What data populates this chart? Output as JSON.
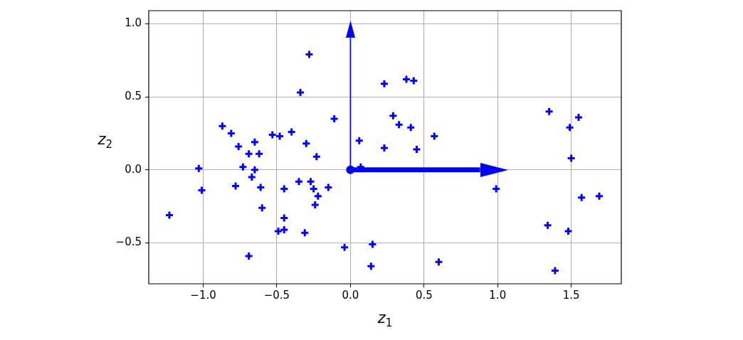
{
  "chart_data": {
    "type": "scatter",
    "xlabel": "z$_{1}$",
    "ylabel": "z$_{2}$",
    "xlim": [
      -1.37,
      1.84
    ],
    "ylim": [
      -0.78,
      1.09
    ],
    "xticks": [
      {
        "value": -1,
        "label": "−1.0"
      },
      {
        "value": -0.5,
        "label": "−0.5"
      },
      {
        "value": 0,
        "label": "0.0"
      },
      {
        "value": 0.5,
        "label": "0.5"
      },
      {
        "value": 1,
        "label": "1.0"
      },
      {
        "value": 1.5,
        "label": "1.5"
      }
    ],
    "yticks": [
      {
        "value": -0.5,
        "label": "−0.5"
      },
      {
        "value": 0,
        "label": "0.0"
      },
      {
        "value": 0.5,
        "label": "0.5"
      },
      {
        "value": 1,
        "label": "1.0"
      }
    ],
    "grid": true,
    "series": [
      {
        "color": "#0000ff",
        "marker": "cross",
        "x": [
          -1.23,
          -1.03,
          -1.01,
          -0.87,
          -0.81,
          -0.76,
          -0.78,
          -0.73,
          -0.69,
          -0.65,
          -0.62,
          -0.65,
          -0.67,
          -0.61,
          -0.6,
          -0.69,
          -0.53,
          -0.48,
          -0.45,
          -0.4,
          -0.45,
          -0.49,
          -0.45,
          -0.35,
          -0.34,
          -0.3,
          -0.28,
          -0.27,
          -0.25,
          -0.23,
          -0.22,
          -0.24,
          -0.31,
          -0.15,
          -0.11,
          -0.04,
          0.06,
          0.07,
          0.15,
          0.14,
          0.23,
          0.23,
          0.29,
          0.33,
          0.38,
          0.43,
          0.41,
          0.45,
          0.57,
          0.6,
          0.99,
          1.35,
          1.34,
          1.39,
          1.49,
          1.55,
          1.5,
          1.57,
          1.69,
          1.48
        ],
        "values": [
          -0.31,
          0.01,
          -0.14,
          0.3,
          0.25,
          0.16,
          -0.11,
          0.02,
          0.11,
          0.19,
          0.11,
          0.0,
          -0.05,
          -0.12,
          -0.26,
          -0.59,
          0.24,
          0.23,
          -0.13,
          0.26,
          -0.33,
          -0.42,
          -0.41,
          -0.08,
          0.53,
          0.18,
          0.79,
          -0.08,
          -0.13,
          0.09,
          -0.18,
          -0.24,
          -0.43,
          -0.12,
          0.35,
          -0.53,
          0.2,
          0.02,
          -0.51,
          -0.66,
          0.59,
          0.15,
          0.37,
          0.31,
          0.62,
          0.61,
          0.29,
          0.14,
          0.23,
          -0.63,
          -0.13,
          0.4,
          -0.38,
          -0.69,
          0.29,
          0.36,
          0.08,
          -0.19,
          -0.18,
          -0.42
        ]
      },
      {
        "type": "line",
        "color": "#0000ff",
        "marker": "none",
        "x": [
          0,
          0
        ],
        "values": [
          0,
          1.02
        ]
      },
      {
        "type": "line",
        "color": "#0000ff",
        "marker": "none",
        "x": [
          0,
          1.07
        ],
        "values": [
          0,
          0
        ]
      },
      {
        "color": "#0000ff",
        "marker": "circle",
        "x": [
          0
        ],
        "values": [
          0
        ]
      }
    ]
  }
}
